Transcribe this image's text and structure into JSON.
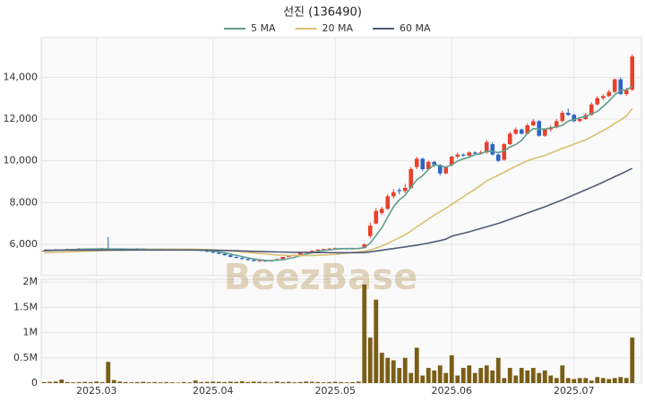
{
  "chart_data": [
    {
      "type": "candlestick",
      "title": "선진 (136490)",
      "watermark": "BeezBase",
      "open": [
        5680,
        5700,
        5720,
        5750,
        5730,
        5780,
        5760,
        5800,
        5780,
        5760,
        5780,
        5800,
        5770,
        5760,
        5790,
        5750,
        5770,
        5800,
        5760,
        5740,
        5780,
        5770,
        5760,
        5750,
        5740,
        5730,
        5740,
        5720,
        5700,
        5650,
        5600,
        5550,
        5480,
        5400,
        5350,
        5300,
        5250,
        5200,
        5220,
        5180,
        5250,
        5300,
        5400,
        5450,
        5500,
        5600,
        5650,
        5700,
        5750,
        5780,
        5800,
        5820,
        5800,
        5780,
        5800,
        5820,
        6400,
        7000,
        7500,
        7700,
        8300,
        8600,
        8550,
        8700,
        9700,
        10100,
        9600,
        9950,
        9800,
        9400,
        9800,
        10200,
        10300,
        10250,
        10400,
        10350,
        10400,
        10800,
        10300,
        10050,
        10800,
        11300,
        11500,
        11300,
        11700,
        11900,
        11200,
        11500,
        11600,
        11900,
        12300,
        12200,
        11900,
        12000,
        12200,
        12700,
        13000,
        13100,
        13300,
        13900,
        13200,
        13400
      ],
      "high": [
        5730,
        5740,
        5780,
        5760,
        5800,
        5790,
        5820,
        5810,
        5790,
        5800,
        5830,
        6350,
        5790,
        5800,
        5800,
        5790,
        5820,
        5810,
        5770,
        5800,
        5790,
        5780,
        5770,
        5760,
        5750,
        5760,
        5750,
        5730,
        5710,
        5660,
        5610,
        5560,
        5490,
        5420,
        5370,
        5320,
        5270,
        5240,
        5230,
        5260,
        5310,
        5410,
        5460,
        5510,
        5610,
        5660,
        5710,
        5760,
        5790,
        5820,
        5840,
        5830,
        5810,
        5810,
        5830,
        6050,
        7050,
        7750,
        7800,
        8400,
        8650,
        8700,
        8900,
        9700,
        10200,
        10150,
        10000,
        10000,
        9850,
        9750,
        10250,
        10400,
        10350,
        10450,
        10450,
        10500,
        11000,
        10900,
        10350,
        10850,
        11400,
        11600,
        11550,
        11800,
        12000,
        11950,
        11550,
        11700,
        12000,
        12400,
        12500,
        12250,
        12050,
        12300,
        12800,
        13100,
        13200,
        13400,
        13950,
        14000,
        13500,
        15100
      ],
      "low": [
        5660,
        5690,
        5710,
        5710,
        5720,
        5740,
        5750,
        5760,
        5740,
        5750,
        5770,
        5760,
        5740,
        5750,
        5740,
        5740,
        5760,
        5750,
        5730,
        5730,
        5760,
        5750,
        5740,
        5730,
        5720,
        5720,
        5710,
        5690,
        5630,
        5580,
        5530,
        5460,
        5380,
        5330,
        5280,
        5230,
        5180,
        5190,
        5160,
        5170,
        5240,
        5290,
        5390,
        5440,
        5490,
        5590,
        5640,
        5690,
        5740,
        5770,
        5790,
        5780,
        5760,
        5770,
        5790,
        5810,
        6300,
        6950,
        7400,
        7650,
        8200,
        8400,
        8450,
        8650,
        9600,
        9500,
        9550,
        9700,
        9300,
        9350,
        9750,
        10100,
        10200,
        10200,
        10300,
        10300,
        10350,
        10250,
        9950,
        10000,
        10750,
        11250,
        11250,
        11250,
        11650,
        11150,
        11150,
        11400,
        11550,
        11850,
        12150,
        11850,
        11850,
        11950,
        12150,
        12650,
        12900,
        13050,
        13250,
        13150,
        13100,
        13350
      ],
      "close": [
        5700,
        5720,
        5750,
        5730,
        5780,
        5760,
        5800,
        5780,
        5760,
        5780,
        5800,
        5770,
        5760,
        5790,
        5750,
        5770,
        5800,
        5760,
        5740,
        5780,
        5770,
        5760,
        5750,
        5740,
        5730,
        5740,
        5720,
        5700,
        5650,
        5600,
        5550,
        5480,
        5400,
        5350,
        5300,
        5250,
        5200,
        5220,
        5180,
        5250,
        5300,
        5400,
        5450,
        5500,
        5600,
        5650,
        5700,
        5750,
        5780,
        5800,
        5820,
        5800,
        5780,
        5800,
        5820,
        6000,
        6900,
        7600,
        7700,
        8300,
        8500,
        8550,
        8700,
        9600,
        10100,
        9600,
        9950,
        9800,
        9400,
        9700,
        10200,
        10300,
        10250,
        10400,
        10350,
        10400,
        10900,
        10300,
        10000,
        10800,
        11300,
        11500,
        11300,
        11700,
        11900,
        11200,
        11500,
        11600,
        11900,
        12300,
        12200,
        11900,
        12000,
        12200,
        12700,
        13000,
        13100,
        13300,
        13900,
        13200,
        13400,
        15000
      ],
      "up_color": "#e8412c",
      "down_color": "#2c64c6",
      "series": [
        {
          "name": "5 MA",
          "color": "#5e9e8c",
          "values": [
            5700,
            5705,
            5715,
            5725,
            5736,
            5748,
            5764,
            5770,
            5776,
            5776,
            5784,
            5778,
            5778,
            5780,
            5774,
            5768,
            5774,
            5770,
            5764,
            5762,
            5766,
            5764,
            5760,
            5756,
            5748,
            5744,
            5736,
            5726,
            5706,
            5682,
            5646,
            5596,
            5536,
            5476,
            5416,
            5356,
            5300,
            5264,
            5230,
            5220,
            5240,
            5270,
            5320,
            5380,
            5460,
            5530,
            5600,
            5660,
            5706,
            5736,
            5770,
            5790,
            5800,
            5800,
            5804,
            5840,
            6060,
            6420,
            6800,
            7300,
            7800,
            8130,
            8350,
            8730,
            9090,
            9290,
            9590,
            9810,
            9770,
            9690,
            9810,
            9990,
            10090,
            10170,
            10300,
            10340,
            10460,
            10450,
            10390,
            10480,
            10660,
            10780,
            10980,
            11320,
            11540,
            11520,
            11520,
            11580,
            11620,
            11700,
            11900,
            11980,
            12060,
            12120,
            12260,
            12360,
            12600,
            12860,
            13160,
            13360,
            13400,
            13560
          ]
        },
        {
          "name": "20 MA",
          "color": "#d8c070",
          "values": [
            5600,
            5610,
            5620,
            5630,
            5640,
            5650,
            5660,
            5670,
            5680,
            5690,
            5700,
            5710,
            5715,
            5720,
            5725,
            5730,
            5735,
            5740,
            5745,
            5750,
            5755,
            5760,
            5762,
            5764,
            5765,
            5765,
            5762,
            5758,
            5750,
            5740,
            5725,
            5710,
            5690,
            5665,
            5640,
            5615,
            5590,
            5565,
            5540,
            5515,
            5495,
            5480,
            5470,
            5465,
            5460,
            5460,
            5465,
            5475,
            5490,
            5505,
            5525,
            5550,
            5580,
            5610,
            5640,
            5670,
            5730,
            5820,
            5920,
            6050,
            6180,
            6320,
            6460,
            6640,
            6840,
            7020,
            7210,
            7400,
            7560,
            7730,
            7920,
            8100,
            8280,
            8460,
            8640,
            8830,
            9040,
            9180,
            9310,
            9450,
            9600,
            9740,
            9870,
            10000,
            10100,
            10180,
            10260,
            10370,
            10480,
            10600,
            10680,
            10800,
            10900,
            11000,
            11150,
            11300,
            11450,
            11600,
            11800,
            11950,
            12150,
            12500
          ]
        },
        {
          "name": "60 MA",
          "color": "#505a78",
          "values": [
            5720,
            5720,
            5721,
            5722,
            5722,
            5723,
            5724,
            5724,
            5725,
            5725,
            5726,
            5727,
            5727,
            5728,
            5728,
            5729,
            5729,
            5730,
            5730,
            5730,
            5730,
            5731,
            5731,
            5731,
            5731,
            5730,
            5729,
            5727,
            5724,
            5720,
            5715,
            5708,
            5700,
            5692,
            5684,
            5675,
            5666,
            5658,
            5650,
            5642,
            5636,
            5630,
            5625,
            5620,
            5616,
            5613,
            5610,
            5608,
            5606,
            5604,
            5603,
            5602,
            5601,
            5600,
            5600,
            5610,
            5640,
            5680,
            5720,
            5760,
            5800,
            5840,
            5880,
            5920,
            5960,
            6010,
            6060,
            6120,
            6180,
            6250,
            6390,
            6460,
            6530,
            6600,
            6680,
            6760,
            6840,
            6920,
            7000,
            7100,
            7200,
            7300,
            7400,
            7500,
            7600,
            7700,
            7800,
            7910,
            8020,
            8130,
            8250,
            8370,
            8490,
            8610,
            8730,
            8850,
            8980,
            9110,
            9240,
            9370,
            9500,
            9640
          ]
        }
      ],
      "ylim": [
        4500,
        15900
      ],
      "yticks": [
        {
          "value": 6000,
          "label": "6,000"
        },
        {
          "value": 8000,
          "label": "8,000"
        },
        {
          "value": 10000,
          "label": "10,000"
        },
        {
          "value": 12000,
          "label": "12,000"
        },
        {
          "value": 14000,
          "label": "14,000"
        }
      ],
      "grid": true
    },
    {
      "type": "bar",
      "categories": [
        null,
        null,
        null,
        null,
        null,
        null,
        null,
        null,
        null,
        "2025.03",
        null,
        null,
        null,
        null,
        null,
        null,
        null,
        null,
        null,
        null,
        null,
        null,
        null,
        null,
        null,
        null,
        null,
        null,
        null,
        "2025.04",
        null,
        null,
        null,
        null,
        null,
        null,
        null,
        null,
        null,
        null,
        null,
        null,
        null,
        null,
        null,
        null,
        null,
        null,
        null,
        null,
        "2025.05",
        null,
        null,
        null,
        null,
        null,
        null,
        null,
        null,
        null,
        null,
        null,
        null,
        null,
        null,
        null,
        null,
        null,
        null,
        null,
        "2025.06",
        null,
        null,
        null,
        null,
        null,
        null,
        null,
        null,
        null,
        null,
        null,
        null,
        null,
        null,
        null,
        null,
        null,
        null,
        null,
        null,
        "2025.07",
        null,
        null,
        null,
        null,
        null,
        null,
        null,
        null,
        null,
        null
      ],
      "values": [
        20000,
        25000,
        30000,
        70000,
        20000,
        15000,
        20000,
        25000,
        20000,
        30000,
        20000,
        420000,
        60000,
        30000,
        20000,
        15000,
        20000,
        25000,
        15000,
        20000,
        15000,
        20000,
        15000,
        10000,
        20000,
        15000,
        50000,
        20000,
        25000,
        30000,
        25000,
        20000,
        30000,
        25000,
        35000,
        20000,
        30000,
        25000,
        20000,
        15000,
        30000,
        20000,
        25000,
        15000,
        20000,
        30000,
        25000,
        20000,
        15000,
        20000,
        25000,
        20000,
        15000,
        20000,
        30000,
        1950000,
        900000,
        1650000,
        600000,
        500000,
        450000,
        300000,
        500000,
        200000,
        700000,
        150000,
        300000,
        250000,
        350000,
        200000,
        550000,
        150000,
        300000,
        350000,
        200000,
        300000,
        350000,
        250000,
        500000,
        100000,
        300000,
        150000,
        300000,
        250000,
        300000,
        200000,
        250000,
        150000,
        100000,
        350000,
        100000,
        80000,
        100000,
        100000,
        50000,
        120000,
        100000,
        80000,
        100000,
        120000,
        100000,
        900000
      ],
      "color": "#7a5e16",
      "ylim": [
        0,
        2000000
      ],
      "yticks": [
        0,
        {
          "value": 500000,
          "label": "0.5M"
        },
        {
          "value": 1000000,
          "label": "1M"
        },
        {
          "value": 1500000,
          "label": "1.5M"
        },
        {
          "value": 2000000,
          "label": "2M"
        }
      ],
      "grid": true
    }
  ]
}
